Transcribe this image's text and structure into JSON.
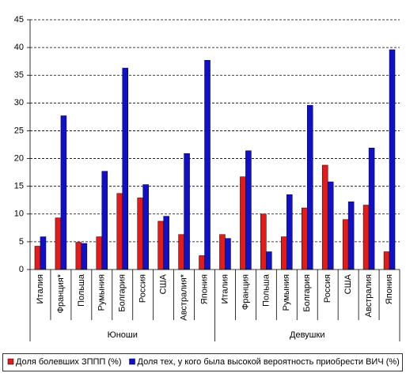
{
  "chart_data": {
    "type": "bar",
    "categories": [
      "Италия",
      "Франция*",
      "Польша",
      "Румыния",
      "Болгария",
      "Россия",
      "США",
      "Австралия*",
      "Япония",
      "Италия",
      "Франция",
      "Польша",
      "Румыния",
      "Болгария",
      "Россия",
      "США",
      "Австралия",
      "Япония"
    ],
    "groups": [
      "Юноши",
      "Девушки"
    ],
    "series": [
      {
        "name": "Доля болевших ЗППП (%)",
        "color": "#e31b1b",
        "values": [
          4.2,
          9.3,
          4.9,
          5.9,
          13.7,
          12.9,
          8.7,
          6.3,
          2.5,
          6.3,
          16.7,
          10.0,
          5.9,
          11.1,
          18.8,
          9.0,
          11.6,
          3.2
        ]
      },
      {
        "name": "Доля тех, у кого была высокой вероятность приобрести ВИЧ (%)",
        "color": "#1010cc",
        "values": [
          5.9,
          27.7,
          4.7,
          17.7,
          36.3,
          15.3,
          9.6,
          20.9,
          37.7,
          5.6,
          21.4,
          3.2,
          13.5,
          29.6,
          15.8,
          12.2,
          21.9,
          39.6
        ]
      }
    ],
    "ylim": [
      0,
      45
    ],
    "yticks": [
      0,
      5,
      10,
      15,
      20,
      25,
      30,
      35,
      40,
      45
    ],
    "grid": true,
    "legend": "bottom"
  }
}
